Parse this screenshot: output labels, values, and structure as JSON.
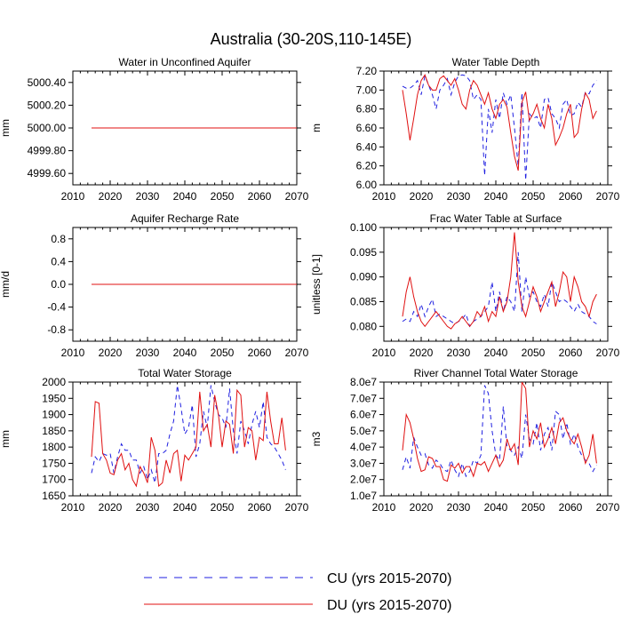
{
  "figure": {
    "title": "Australia (30-20S,110-145E)",
    "colors": {
      "cu": "#1f1fe0",
      "du": "#e01010",
      "axis": "#000000"
    }
  },
  "legend": {
    "cu_label": "CU (yrs 2015-2070)",
    "du_label": "DU (yrs 2015-2070)"
  },
  "chart_data": [
    {
      "type": "line",
      "title": "Water in Unconfined Aquifer",
      "ylabel": "mm",
      "xlim": [
        2010,
        2070
      ],
      "ylim": [
        4999.5,
        5000.5
      ],
      "xticks": [
        2010,
        2020,
        2030,
        2040,
        2050,
        2060,
        2070
      ],
      "xtick_labels": [
        "2010",
        "2020",
        "2030",
        "2040",
        "2050",
        "2060",
        "2070"
      ],
      "yticks": [
        4999.6,
        4999.8,
        5000.0,
        5000.2,
        5000.4
      ],
      "ytick_labels": [
        "4999.60",
        "4999.80",
        "5000.00",
        "5000.20",
        "5000.40"
      ],
      "x": [
        2015,
        2070
      ],
      "series": [
        {
          "name": "DU",
          "values": [
            5000.0,
            5000.0
          ]
        },
        {
          "name": "CU",
          "values": [
            5000.0,
            5000.0
          ]
        }
      ]
    },
    {
      "type": "line",
      "title": "Water Table Depth",
      "ylabel": "m",
      "xlim": [
        2010,
        2070
      ],
      "ylim": [
        6.0,
        7.2
      ],
      "xticks": [
        2010,
        2020,
        2030,
        2040,
        2050,
        2060,
        2070
      ],
      "xtick_labels": [
        "2010",
        "2020",
        "2030",
        "2040",
        "2050",
        "2060",
        "2070"
      ],
      "yticks": [
        6.0,
        6.2,
        6.4,
        6.6,
        6.8,
        7.0,
        7.2
      ],
      "ytick_labels": [
        "6.00",
        "6.20",
        "6.40",
        "6.60",
        "6.80",
        "7.00",
        "7.20"
      ],
      "x_start": 2015,
      "series": [
        {
          "name": "DU",
          "values": [
            7.0,
            6.75,
            6.47,
            6.7,
            6.95,
            7.1,
            7.16,
            7.05,
            7.0,
            7.0,
            7.12,
            7.15,
            7.1,
            7.05,
            7.12,
            7.0,
            6.85,
            6.8,
            7.0,
            7.1,
            7.05,
            6.95,
            6.85,
            6.97,
            6.8,
            6.7,
            6.85,
            6.9,
            6.82,
            6.55,
            6.3,
            6.15,
            6.87,
            6.98,
            6.68,
            6.75,
            6.85,
            6.7,
            6.6,
            6.85,
            6.7,
            6.42,
            6.5,
            6.6,
            6.75,
            6.85,
            6.5,
            6.55,
            6.8,
            6.97,
            6.9,
            6.7,
            6.78
          ]
        },
        {
          "name": "CU",
          "values": [
            7.04,
            7.02,
            7.02,
            7.05,
            7.1,
            6.95,
            7.15,
            7.05,
            6.95,
            6.8,
            7.0,
            7.05,
            7.12,
            6.95,
            7.08,
            7.15,
            7.16,
            7.15,
            7.1,
            6.9,
            6.95,
            6.9,
            6.1,
            6.8,
            6.55,
            6.9,
            6.7,
            6.97,
            6.85,
            6.95,
            6.6,
            6.2,
            6.97,
            6.05,
            6.75,
            6.7,
            6.72,
            6.6,
            6.9,
            6.92,
            6.75,
            6.7,
            6.6,
            6.85,
            6.9,
            6.73,
            6.75,
            6.87,
            6.82,
            6.98,
            6.96,
            7.05,
            7.1
          ]
        }
      ]
    },
    {
      "type": "line",
      "title": "Aquifer Recharge Rate",
      "ylabel": "mm/d",
      "xlim": [
        2010,
        2070
      ],
      "ylim": [
        -1.0,
        1.0
      ],
      "xticks": [
        2010,
        2020,
        2030,
        2040,
        2050,
        2060,
        2070
      ],
      "xtick_labels": [
        "2010",
        "2020",
        "2030",
        "2040",
        "2050",
        "2060",
        "2070"
      ],
      "yticks": [
        -0.8,
        -0.4,
        0.0,
        0.4,
        0.8
      ],
      "ytick_labels": [
        "-0.8",
        "-0.4",
        "0.0",
        "0.4",
        "0.8"
      ],
      "x": [
        2015,
        2070
      ],
      "series": [
        {
          "name": "DU",
          "values": [
            0.0,
            0.0
          ]
        },
        {
          "name": "CU",
          "values": [
            0.0,
            0.0
          ]
        }
      ]
    },
    {
      "type": "line",
      "title": "Frac Water Table at Surface",
      "ylabel": "unitless [0-1]",
      "xlim": [
        2010,
        2070
      ],
      "ylim": [
        0.077,
        0.1
      ],
      "xticks": [
        2010,
        2020,
        2030,
        2040,
        2050,
        2060,
        2070
      ],
      "xtick_labels": [
        "2010",
        "2020",
        "2030",
        "2040",
        "2050",
        "2060",
        "2070"
      ],
      "yticks": [
        0.08,
        0.085,
        0.09,
        0.095,
        0.1
      ],
      "ytick_labels": [
        "0.080",
        "0.085",
        "0.090",
        "0.095",
        "0.100"
      ],
      "x_start": 2015,
      "series": [
        {
          "name": "DU",
          "values": [
            0.082,
            0.087,
            0.09,
            0.086,
            0.083,
            0.081,
            0.08,
            0.081,
            0.082,
            0.083,
            0.082,
            0.081,
            0.08,
            0.0795,
            0.0805,
            0.081,
            0.082,
            0.081,
            0.08,
            0.081,
            0.083,
            0.082,
            0.084,
            0.081,
            0.083,
            0.082,
            0.086,
            0.083,
            0.085,
            0.09,
            0.099,
            0.089,
            0.084,
            0.082,
            0.085,
            0.088,
            0.086,
            0.083,
            0.085,
            0.087,
            0.089,
            0.084,
            0.087,
            0.091,
            0.09,
            0.085,
            0.09,
            0.088,
            0.085,
            0.084,
            0.082,
            0.085,
            0.0865
          ]
        },
        {
          "name": "CU",
          "values": [
            0.081,
            0.0815,
            0.081,
            0.083,
            0.082,
            0.0845,
            0.082,
            0.084,
            0.0855,
            0.082,
            0.0825,
            0.082,
            0.0815,
            0.081,
            0.0805,
            0.081,
            0.0815,
            0.0825,
            0.08,
            0.081,
            0.0815,
            0.082,
            0.083,
            0.084,
            0.089,
            0.083,
            0.087,
            0.083,
            0.086,
            0.085,
            0.083,
            0.095,
            0.083,
            0.09,
            0.086,
            0.087,
            0.085,
            0.084,
            0.0865,
            0.084,
            0.089,
            0.087,
            0.085,
            0.0855,
            0.085,
            0.084,
            0.083,
            0.0845,
            0.083,
            0.0825,
            0.082,
            0.081,
            0.0805
          ]
        }
      ]
    },
    {
      "type": "line",
      "title": "Total Water Storage",
      "ylabel": "mm",
      "xlim": [
        2010,
        2070
      ],
      "ylim": [
        1650,
        2000
      ],
      "xticks": [
        2010,
        2020,
        2030,
        2040,
        2050,
        2060,
        2070
      ],
      "xtick_labels": [
        "2010",
        "2020",
        "2030",
        "2040",
        "2050",
        "2060",
        "2070"
      ],
      "yticks": [
        1650,
        1700,
        1750,
        1800,
        1850,
        1900,
        1950,
        2000
      ],
      "ytick_labels": [
        "1650",
        "1700",
        "1750",
        "1800",
        "1850",
        "1900",
        "1950",
        "2000"
      ],
      "x_start": 2015,
      "series": [
        {
          "name": "DU",
          "values": [
            1770,
            1940,
            1935,
            1780,
            1760,
            1720,
            1715,
            1760,
            1780,
            1730,
            1750,
            1700,
            1680,
            1740,
            1720,
            1690,
            1830,
            1790,
            1680,
            1690,
            1760,
            1720,
            1780,
            1790,
            1695,
            1775,
            1760,
            1780,
            1800,
            1970,
            1850,
            1870,
            1800,
            1960,
            1900,
            1800,
            1880,
            1870,
            1780,
            1975,
            1960,
            1800,
            1860,
            1850,
            1760,
            1830,
            1820,
            1970,
            1880,
            1810,
            1810,
            1890,
            1790
          ]
        },
        {
          "name": "CU",
          "values": [
            1720,
            1770,
            1755,
            1780,
            1775,
            1780,
            1720,
            1770,
            1810,
            1790,
            1790,
            1760,
            1760,
            1720,
            1740,
            1700,
            1730,
            1690,
            1780,
            1780,
            1790,
            1840,
            1880,
            1990,
            1920,
            1840,
            1860,
            1930,
            1770,
            1810,
            1910,
            1860,
            1990,
            1940,
            1900,
            1890,
            1860,
            1980,
            1850,
            1780,
            1880,
            1850,
            1810,
            1870,
            1910,
            1860,
            1940,
            1830,
            1810,
            1800,
            1780,
            1760,
            1730
          ]
        }
      ]
    },
    {
      "type": "line",
      "title": "River Channel Total Water Storage",
      "ylabel": "m3",
      "xlim": [
        2010,
        2070
      ],
      "ylim": [
        10000000,
        80000000
      ],
      "xticks": [
        2010,
        2020,
        2030,
        2040,
        2050,
        2060,
        2070
      ],
      "xtick_labels": [
        "2010",
        "2020",
        "2030",
        "2040",
        "2050",
        "2060",
        "2070"
      ],
      "yticks": [
        10000000,
        20000000,
        30000000,
        40000000,
        50000000,
        60000000,
        70000000,
        80000000
      ],
      "ytick_labels": [
        "1.0e7",
        "2.0e7",
        "3.0e7",
        "4.0e7",
        "5.0e7",
        "6.0e7",
        "7.0e7",
        "8.0e7"
      ],
      "x_start": 2015,
      "series": [
        {
          "name": "DU",
          "values": [
            38000000,
            60000000,
            55000000,
            45000000,
            33000000,
            25000000,
            26000000,
            34000000,
            33000000,
            28000000,
            28000000,
            20000000,
            19000000,
            29000000,
            27000000,
            30000000,
            24000000,
            28000000,
            28000000,
            22000000,
            30000000,
            29000000,
            31000000,
            25000000,
            30000000,
            35000000,
            28000000,
            32000000,
            45000000,
            38000000,
            42000000,
            29000000,
            80000000,
            76000000,
            40000000,
            50000000,
            45000000,
            55000000,
            40000000,
            45000000,
            52000000,
            42000000,
            55000000,
            58000000,
            50000000,
            45000000,
            42000000,
            48000000,
            40000000,
            30000000,
            35000000,
            48000000,
            30000000
          ]
        },
        {
          "name": "CU",
          "values": [
            26000000,
            34000000,
            27000000,
            46000000,
            40000000,
            35000000,
            36000000,
            29000000,
            27000000,
            32000000,
            30000000,
            26000000,
            25000000,
            32000000,
            26000000,
            22000000,
            30000000,
            22000000,
            25000000,
            32000000,
            30000000,
            35000000,
            78000000,
            73000000,
            50000000,
            35000000,
            32000000,
            65000000,
            40000000,
            38000000,
            35000000,
            40000000,
            33000000,
            60000000,
            45000000,
            42000000,
            55000000,
            38000000,
            48000000,
            52000000,
            38000000,
            62000000,
            60000000,
            45000000,
            55000000,
            42000000,
            48000000,
            40000000,
            35000000,
            32000000,
            30000000,
            25000000,
            29000000
          ]
        }
      ]
    }
  ]
}
